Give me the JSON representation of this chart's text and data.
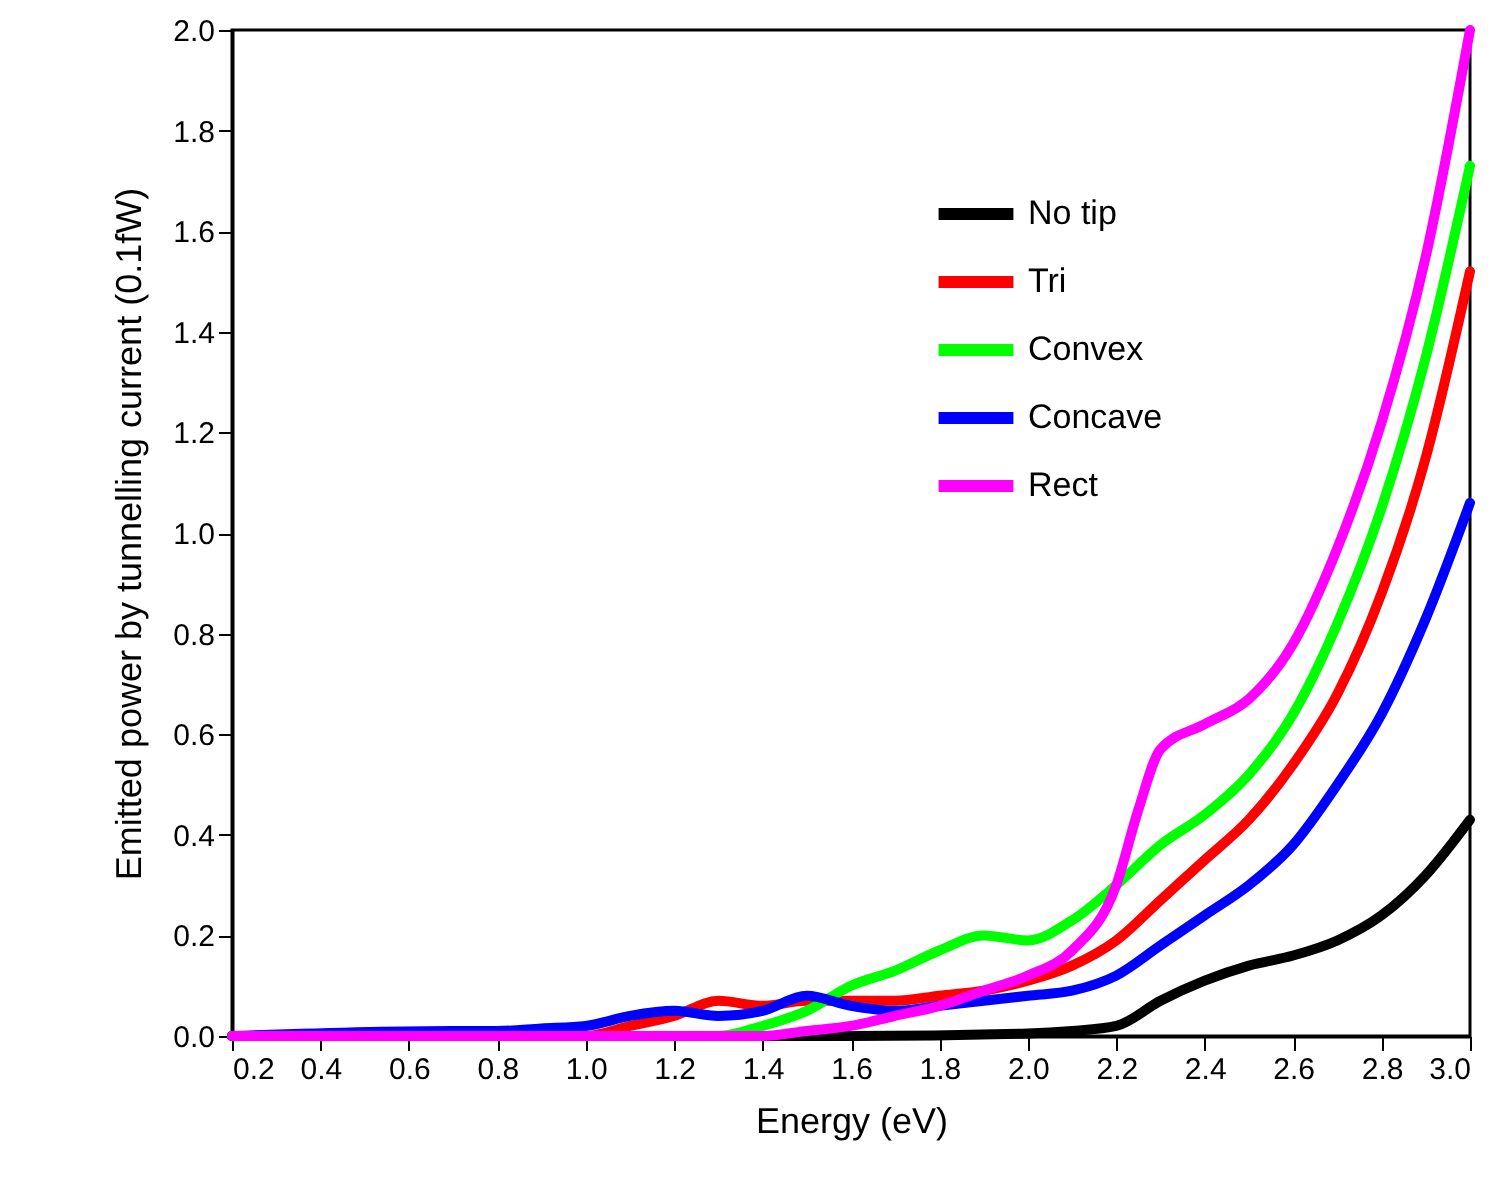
{
  "chart_data": {
    "type": "line",
    "xlabel": "Energy (eV)",
    "ylabel": "Emitted power by tunnelling current (0.1fW)",
    "xlim": [
      0.2,
      3.0
    ],
    "ylim": [
      0,
      2.0
    ],
    "xticks": [
      0.2,
      0.4,
      0.6,
      0.8,
      {
        "value": 1,
        "label": "1.0"
      },
      1.2,
      1.4,
      1.6,
      1.8,
      {
        "value": 2,
        "label": "2.0"
      },
      2.2,
      2.4,
      2.6,
      2.8,
      {
        "value": 3,
        "label": "3.0"
      }
    ],
    "yticks": [
      {
        "value": 0,
        "label": "0.0"
      },
      0.2,
      0.4,
      0.6,
      0.8,
      {
        "value": 1,
        "label": "1.0"
      },
      1.2,
      1.4,
      1.6,
      1.8,
      {
        "value": 2,
        "label": "2.0"
      }
    ],
    "legend": "top right",
    "grid": false,
    "marker": "none",
    "line_style": "solid",
    "series": [
      {
        "name": "No tip",
        "color": "#000000",
        "x": [
          0.2,
          1.0,
          1.6,
          2.0,
          2.1,
          2.2,
          2.3,
          2.4,
          2.5,
          2.6,
          2.7,
          2.8,
          2.9,
          3.0
        ],
        "values": [
          0,
          0,
          0,
          0.005,
          0.01,
          0.02,
          0.07,
          0.11,
          0.14,
          0.16,
          0.19,
          0.24,
          0.32,
          0.43
        ]
      },
      {
        "name": "Tri",
        "color": "#ff0000",
        "x": [
          0.2,
          1.0,
          1.1,
          1.2,
          1.3,
          1.4,
          1.5,
          1.6,
          1.7,
          1.8,
          1.9,
          2.0,
          2.1,
          2.2,
          2.3,
          2.4,
          2.5,
          2.6,
          2.7,
          2.8,
          2.9,
          3.0
        ],
        "values": [
          0,
          0,
          0.02,
          0.04,
          0.07,
          0.06,
          0.07,
          0.07,
          0.07,
          0.08,
          0.09,
          0.11,
          0.14,
          0.19,
          0.27,
          0.35,
          0.43,
          0.54,
          0.68,
          0.88,
          1.15,
          1.52
        ]
      },
      {
        "name": "Convex",
        "color": "#00ff00",
        "x": [
          0.2,
          1.3,
          1.4,
          1.5,
          1.6,
          1.7,
          1.8,
          1.9,
          2.0,
          2.1,
          2.2,
          2.3,
          2.4,
          2.5,
          2.6,
          2.7,
          2.8,
          2.9,
          3.0
        ],
        "values": [
          0,
          0,
          0.02,
          0.05,
          0.1,
          0.13,
          0.17,
          0.2,
          0.19,
          0.23,
          0.3,
          0.38,
          0.44,
          0.52,
          0.64,
          0.82,
          1.05,
          1.35,
          1.73
        ]
      },
      {
        "name": "Concave",
        "color": "#0000ff",
        "x": [
          0.2,
          0.7,
          0.8,
          0.9,
          1.0,
          1.1,
          1.2,
          1.3,
          1.4,
          1.5,
          1.6,
          1.7,
          1.8,
          1.9,
          2.0,
          2.1,
          2.2,
          2.3,
          2.4,
          2.5,
          2.6,
          2.7,
          2.8,
          2.9,
          3.0
        ],
        "values": [
          0,
          0.01,
          0.01,
          0.015,
          0.02,
          0.04,
          0.05,
          0.04,
          0.05,
          0.08,
          0.06,
          0.05,
          0.06,
          0.07,
          0.08,
          0.09,
          0.12,
          0.18,
          0.24,
          0.3,
          0.38,
          0.5,
          0.64,
          0.83,
          1.06
        ]
      },
      {
        "name": "Rect",
        "color": "#ff00ff",
        "x": [
          0.2,
          1.4,
          1.5,
          1.6,
          1.7,
          1.8,
          1.9,
          2.0,
          2.1,
          2.2,
          2.25,
          2.3,
          2.4,
          2.5,
          2.6,
          2.7,
          2.8,
          2.9,
          3.0
        ],
        "values": [
          0,
          0,
          0.01,
          0.02,
          0.04,
          0.06,
          0.09,
          0.12,
          0.17,
          0.3,
          0.45,
          0.57,
          0.62,
          0.67,
          0.78,
          0.97,
          1.22,
          1.55,
          2.0
        ]
      }
    ]
  }
}
